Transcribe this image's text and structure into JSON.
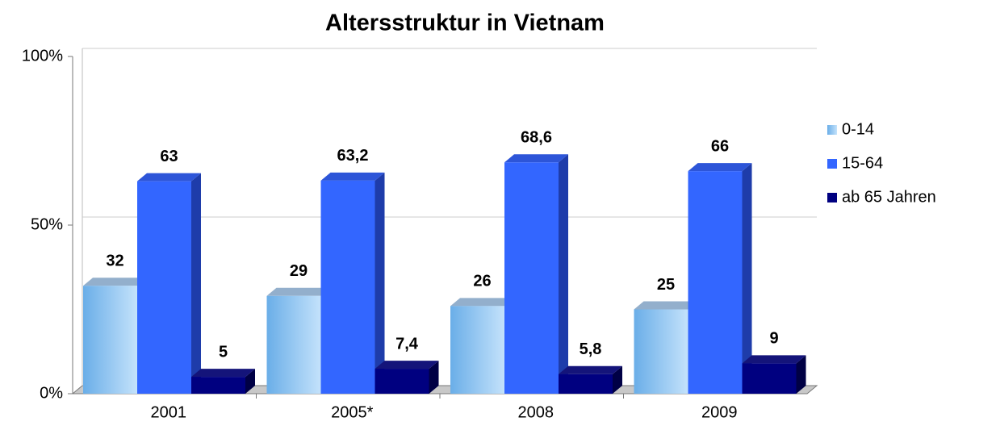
{
  "chart_data": {
    "type": "bar3d",
    "title": "Altersstruktur in Vietnam",
    "categories": [
      "2001",
      "2005*",
      "2008",
      "2009"
    ],
    "series": [
      {
        "name": "0-14",
        "color": "#8cc4f4",
        "values": [
          32,
          29,
          26,
          25
        ],
        "value_labels": [
          "32",
          "29",
          "26",
          "25"
        ]
      },
      {
        "name": "15-64",
        "color": "#3366ff",
        "values": [
          63,
          63.2,
          68.6,
          66
        ],
        "value_labels": [
          "63",
          "63,2",
          "68,6",
          "66"
        ]
      },
      {
        "name": "ab 65 Jahren",
        "color": "#000080",
        "values": [
          5,
          7.4,
          5.8,
          9
        ],
        "value_labels": [
          "5",
          "7,4",
          "5,8",
          "9"
        ]
      }
    ],
    "ylim": [
      0,
      100
    ],
    "yticks": [
      {
        "value": 0,
        "label": "0%"
      },
      {
        "value": 50,
        "label": "50%"
      },
      {
        "value": 100,
        "label": "100%"
      }
    ],
    "grid": true,
    "legend": "right"
  }
}
